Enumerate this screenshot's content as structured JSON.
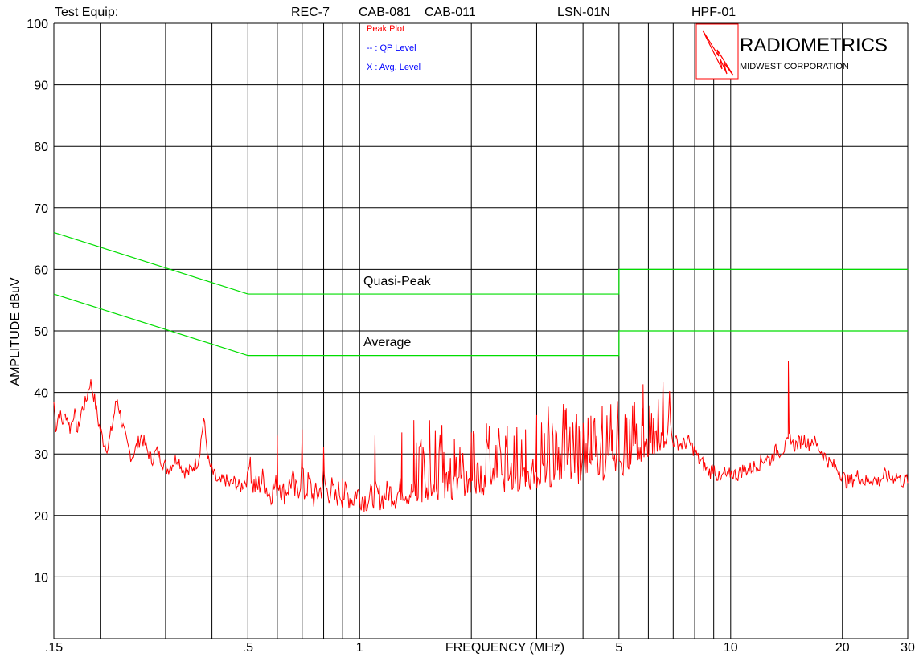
{
  "header": {
    "test_equip_label": "Test Equip:",
    "equipment": [
      "REC-7",
      "CAB-081",
      "CAB-011",
      "LSN-01N",
      "HPF-01"
    ]
  },
  "legend": {
    "peak": "Peak Plot",
    "qp": "-- : QP Level",
    "avg": "X : Avg. Level"
  },
  "logo": {
    "name": "RADIOMETRICS",
    "sub": "MIDWEST CORPORATION"
  },
  "colors": {
    "peak": "#ff0000",
    "limit": "#00dd00",
    "legend_text": "#0000ff",
    "grid": "#000000"
  },
  "chart_data": {
    "type": "line",
    "x_scale": "log",
    "xlabel": "FREQUENCY (MHz)",
    "ylabel": "AMPLITUDE dBuV",
    "xlim": [
      0.15,
      30
    ],
    "ylim": [
      0,
      100
    ],
    "x_ticks": [
      {
        "v": 0.15,
        "label": ".15"
      },
      {
        "v": 0.5,
        "label": ".5"
      },
      {
        "v": 1,
        "label": "1"
      },
      {
        "v": 5,
        "label": "5"
      },
      {
        "v": 10,
        "label": "10"
      },
      {
        "v": 20,
        "label": "20"
      },
      {
        "v": 30,
        "label": "30"
      }
    ],
    "y_ticks": [
      10,
      20,
      30,
      40,
      50,
      60,
      70,
      80,
      90,
      100
    ],
    "x_grid": [
      0.15,
      0.2,
      0.3,
      0.4,
      0.5,
      0.6,
      0.7,
      0.8,
      0.9,
      1,
      2,
      3,
      4,
      5,
      6,
      7,
      8,
      9,
      10,
      20,
      30
    ],
    "grid": true,
    "limit_lines": [
      {
        "name": "Quasi-Peak",
        "points": [
          [
            0.15,
            66
          ],
          [
            0.5,
            56
          ],
          [
            5,
            56
          ],
          [
            5,
            60
          ],
          [
            30,
            60
          ]
        ]
      },
      {
        "name": "Average",
        "points": [
          [
            0.15,
            56
          ],
          [
            0.5,
            46
          ],
          [
            5,
            46
          ],
          [
            5,
            50
          ],
          [
            30,
            50
          ]
        ]
      }
    ],
    "peak_series": {
      "name": "Peak Plot",
      "points": [
        [
          0.15,
          38.5
        ],
        [
          0.152,
          34
        ],
        [
          0.155,
          37
        ],
        [
          0.158,
          35
        ],
        [
          0.162,
          36.5
        ],
        [
          0.166,
          34
        ],
        [
          0.17,
          37
        ],
        [
          0.174,
          33.5
        ],
        [
          0.178,
          37
        ],
        [
          0.183,
          38.5
        ],
        [
          0.188,
          41.9
        ],
        [
          0.193,
          39
        ],
        [
          0.198,
          35
        ],
        [
          0.204,
          32
        ],
        [
          0.21,
          31
        ],
        [
          0.216,
          35
        ],
        [
          0.222,
          39.2
        ],
        [
          0.229,
          35
        ],
        [
          0.236,
          31.5
        ],
        [
          0.243,
          29.5
        ],
        [
          0.25,
          31
        ],
        [
          0.258,
          33
        ],
        [
          0.266,
          31
        ],
        [
          0.275,
          29
        ],
        [
          0.284,
          30.5
        ],
        [
          0.293,
          29
        ],
        [
          0.303,
          27.5
        ],
        [
          0.313,
          28.5
        ],
        [
          0.323,
          29.5
        ],
        [
          0.334,
          27.5
        ],
        [
          0.345,
          26.8
        ],
        [
          0.356,
          28
        ],
        [
          0.368,
          29
        ],
        [
          0.38,
          35.8
        ],
        [
          0.392,
          28.5
        ],
        [
          0.405,
          26.5
        ],
        [
          0.418,
          25
        ],
        [
          0.432,
          26
        ],
        [
          0.446,
          25
        ],
        [
          0.46,
          25.5
        ],
        [
          0.475,
          24.5
        ],
        [
          0.49,
          25.5
        ],
        [
          0.5,
          26
        ],
        [
          0.506,
          31.5
        ],
        [
          0.512,
          25
        ],
        [
          0.53,
          24.5
        ],
        [
          0.55,
          26
        ],
        [
          0.57,
          23.5
        ],
        [
          0.59,
          24.5
        ],
        [
          0.61,
          25.5
        ],
        [
          0.62,
          23.5
        ],
        [
          0.64,
          24.5
        ],
        [
          0.66,
          26
        ],
        [
          0.67,
          23.5
        ],
        [
          0.69,
          25
        ],
        [
          0.7,
          28
        ],
        [
          0.71,
          23.5
        ],
        [
          0.73,
          25.5
        ],
        [
          0.75,
          23
        ],
        [
          0.77,
          23.5
        ],
        [
          0.79,
          24.5
        ],
        [
          0.8,
          26
        ],
        [
          0.82,
          23.5
        ],
        [
          0.84,
          24.5
        ],
        [
          0.86,
          22.5
        ],
        [
          0.88,
          24
        ],
        [
          0.9,
          23.2
        ],
        [
          0.92,
          23.5
        ],
        [
          0.94,
          23
        ],
        [
          0.96,
          22.5
        ],
        [
          0.98,
          24
        ],
        [
          1.0,
          23.2
        ],
        [
          1.05,
          22.5
        ],
        [
          1.1,
          23.5
        ],
        [
          1.15,
          22.8
        ],
        [
          1.2,
          24
        ],
        [
          1.25,
          23
        ],
        [
          1.3,
          24.5
        ],
        [
          1.35,
          23.5
        ],
        [
          1.4,
          24
        ],
        [
          1.45,
          23
        ],
        [
          1.5,
          25
        ],
        [
          1.6,
          24
        ],
        [
          1.7,
          25
        ],
        [
          1.8,
          24.5
        ],
        [
          1.9,
          25.5
        ],
        [
          2.0,
          24.5
        ],
        [
          2.1,
          25.5
        ],
        [
          2.2,
          25
        ],
        [
          2.3,
          26
        ],
        [
          2.4,
          25
        ],
        [
          2.5,
          26
        ],
        [
          2.6,
          25.5
        ],
        [
          2.8,
          26.5
        ],
        [
          3.0,
          26
        ],
        [
          3.2,
          27
        ],
        [
          3.4,
          26.5
        ],
        [
          3.6,
          27.5
        ],
        [
          3.8,
          27
        ],
        [
          4.0,
          27.5
        ],
        [
          4.2,
          27
        ],
        [
          4.4,
          28
        ],
        [
          4.6,
          27.5
        ],
        [
          4.8,
          28
        ],
        [
          5.0,
          28.5
        ],
        [
          5.3,
          29
        ],
        [
          5.6,
          30
        ],
        [
          5.9,
          31
        ],
        [
          6.2,
          31.5
        ],
        [
          6.5,
          32
        ],
        [
          6.8,
          32.5
        ],
        [
          7.1,
          32
        ],
        [
          7.4,
          31.5
        ],
        [
          7.7,
          32
        ],
        [
          8.0,
          30.5
        ],
        [
          8.2,
          29
        ],
        [
          8.4,
          28.5
        ],
        [
          8.6,
          27.5
        ],
        [
          8.8,
          27
        ],
        [
          9.0,
          28
        ],
        [
          9.2,
          26.5
        ],
        [
          9.4,
          25.5
        ],
        [
          9.6,
          27
        ],
        [
          9.8,
          26
        ],
        [
          10.0,
          27
        ],
        [
          10.4,
          26.5
        ],
        [
          10.8,
          27.5
        ],
        [
          11.2,
          27.5
        ],
        [
          11.6,
          28
        ],
        [
          12.0,
          28.5
        ],
        [
          12.4,
          29.5
        ],
        [
          12.8,
          29
        ],
        [
          13.2,
          30.5
        ],
        [
          13.6,
          30.5
        ],
        [
          14.0,
          31
        ],
        [
          14.2,
          31.5
        ],
        [
          14.5,
          33
        ],
        [
          14.7,
          31.5
        ],
        [
          15.0,
          31.5
        ],
        [
          15.4,
          32
        ],
        [
          15.8,
          32.5
        ],
        [
          16.2,
          31.5
        ],
        [
          16.6,
          32.5
        ],
        [
          17.0,
          31.5
        ],
        [
          17.5,
          30.5
        ],
        [
          18.0,
          29.5
        ],
        [
          18.5,
          28.5
        ],
        [
          19.0,
          28
        ],
        [
          19.5,
          27.5
        ],
        [
          20.0,
          26.5
        ],
        [
          20.5,
          25.5
        ],
        [
          21.0,
          25.5
        ],
        [
          22.0,
          26.5
        ],
        [
          23.0,
          25.5
        ],
        [
          24.0,
          26
        ],
        [
          25.0,
          25.5
        ],
        [
          26.0,
          26.5
        ],
        [
          27.0,
          26
        ],
        [
          28.0,
          26.5
        ],
        [
          29.0,
          25.5
        ],
        [
          30.0,
          26
        ]
      ],
      "spikes": [
        [
          0.6,
          33
        ],
        [
          0.7,
          34
        ],
        [
          0.8,
          31.2
        ],
        [
          0.9,
          26
        ],
        [
          1.1,
          33
        ],
        [
          1.3,
          33.5
        ],
        [
          1.4,
          35.5
        ],
        [
          1.6,
          33
        ],
        [
          1.8,
          32.5
        ],
        [
          2.0,
          33.5
        ],
        [
          2.2,
          32.5
        ],
        [
          2.5,
          34.5
        ],
        [
          2.8,
          34
        ],
        [
          3.0,
          36.3
        ],
        [
          3.3,
          35
        ],
        [
          3.6,
          34
        ],
        [
          3.9,
          34.5
        ],
        [
          4.2,
          36.2
        ],
        [
          4.5,
          35
        ],
        [
          4.8,
          34
        ],
        [
          5.2,
          35.5
        ],
        [
          5.5,
          34
        ],
        [
          5.8,
          34.5
        ],
        [
          6.1,
          34
        ],
        [
          6.5,
          33.5
        ],
        [
          14.3,
          45.1
        ]
      ]
    }
  },
  "annotations": {
    "quasi_peak": "Quasi-Peak",
    "average": "Average"
  }
}
